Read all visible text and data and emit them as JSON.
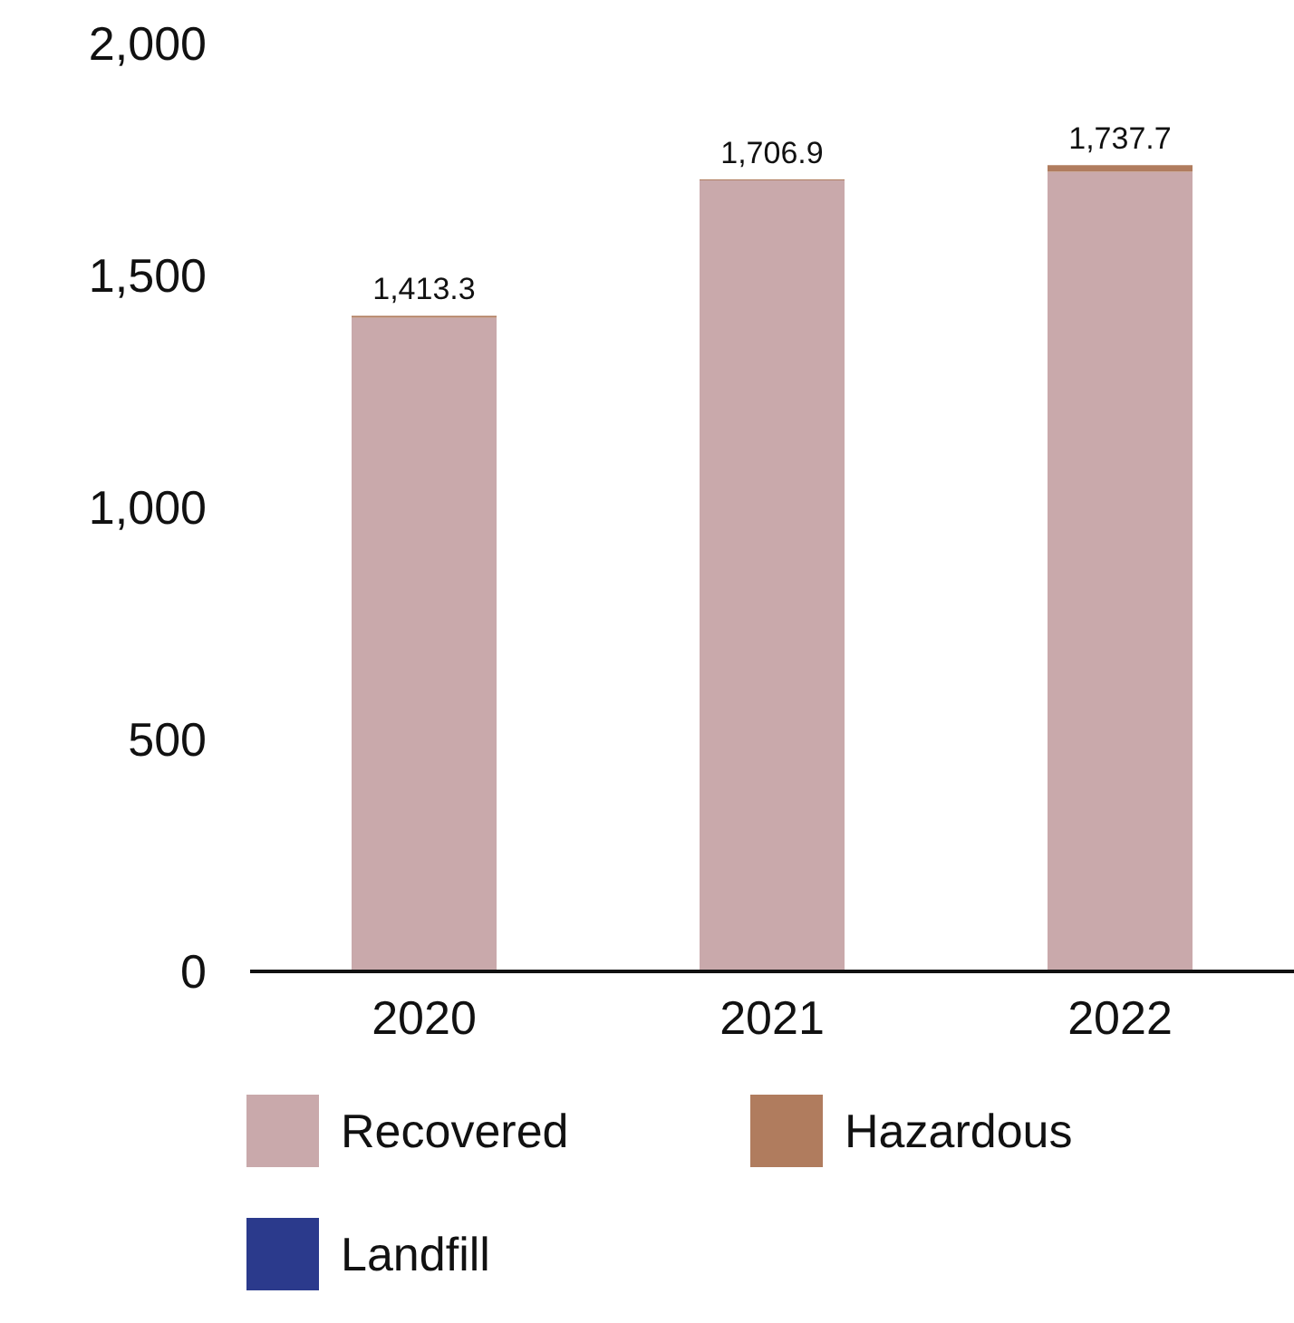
{
  "chart_data": {
    "type": "bar",
    "stacked": true,
    "categories": [
      "2020",
      "2021",
      "2022"
    ],
    "series": [
      {
        "name": "Recovered",
        "color": "#c9a9ab",
        "values": [
          1409.3,
          1704.9,
          1723.7
        ]
      },
      {
        "name": "Hazardous",
        "color": "#b07c5e",
        "values": [
          4,
          2,
          14
        ]
      },
      {
        "name": "Landfill",
        "color": "#2b3a8c",
        "values": [
          0,
          0,
          0
        ]
      }
    ],
    "totals": [
      "1,413.3",
      "1,706.9",
      "1,737.7"
    ],
    "ylim": [
      0,
      2000
    ],
    "yticks": [
      {
        "value": 0,
        "label": "0"
      },
      {
        "value": 500,
        "label": "500"
      },
      {
        "value": 1000,
        "label": "1,000"
      },
      {
        "value": 1500,
        "label": "1,500"
      },
      {
        "value": 2000,
        "label": "2,000"
      }
    ],
    "grid": false,
    "legend": "bottom"
  }
}
